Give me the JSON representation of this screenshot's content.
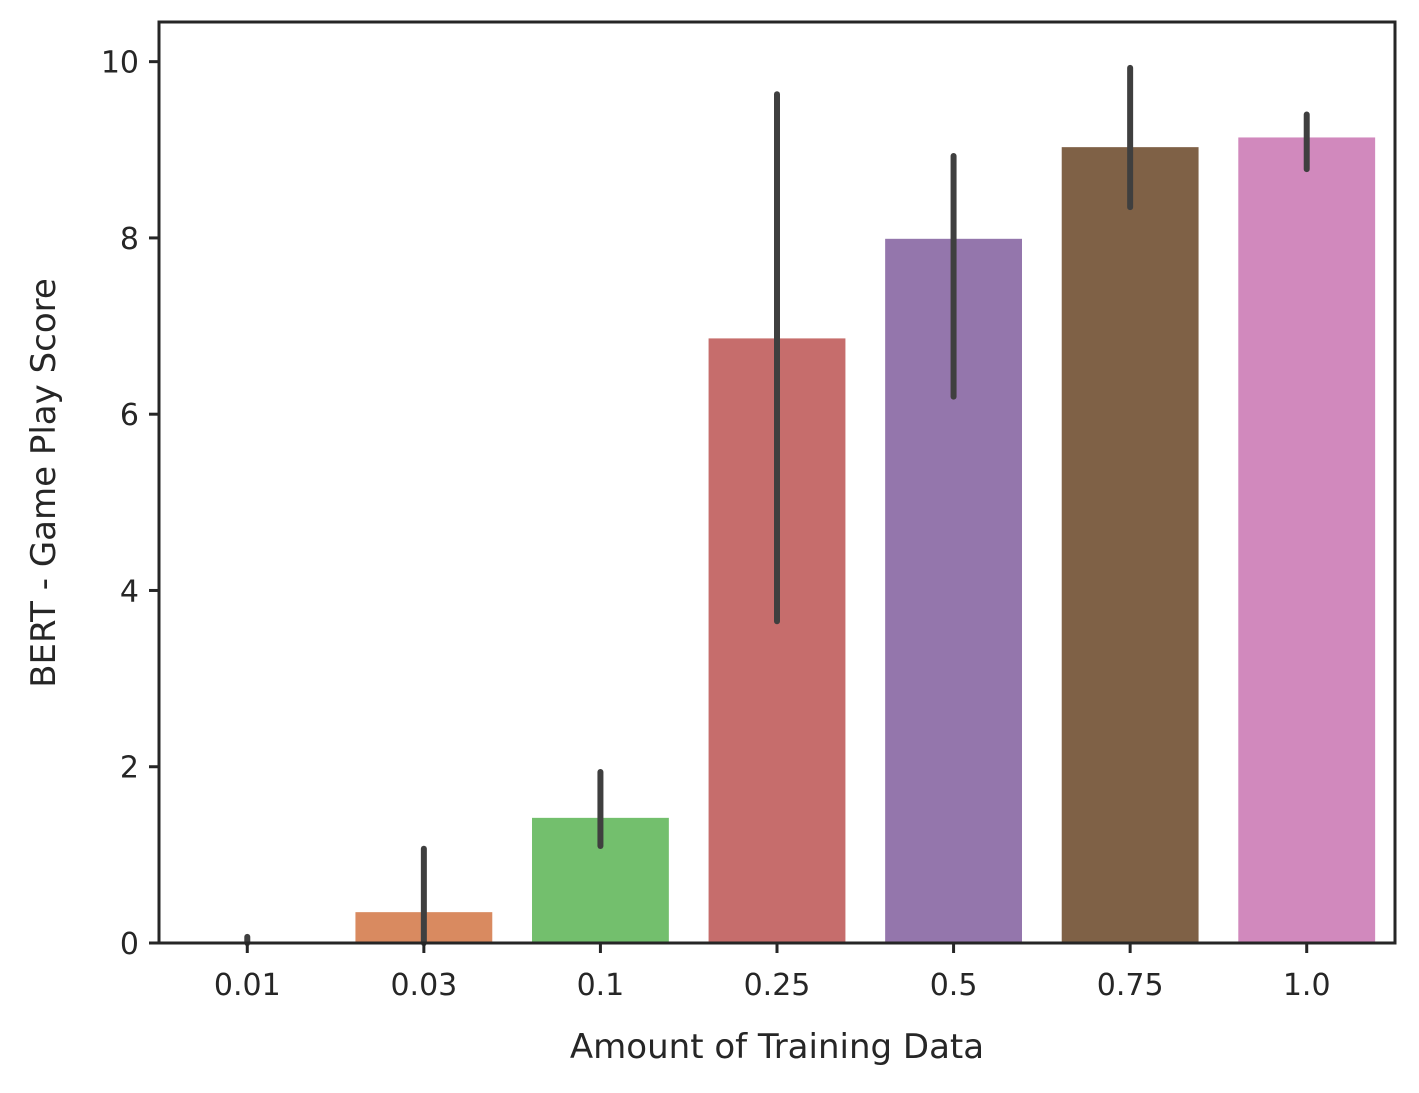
{
  "chart_data": {
    "type": "bar",
    "title": "",
    "xlabel": "Amount of Training Data",
    "ylabel": "BERT - Game Play Score",
    "ylim": [
      0,
      10.45
    ],
    "yticks": [
      0,
      2,
      4,
      6,
      8,
      10
    ],
    "ytick_labels": [
      "0",
      "2",
      "4",
      "6",
      "8",
      "10"
    ],
    "categories": [
      "0.01",
      "0.03",
      "0.1",
      "0.25",
      "0.5",
      "0.75",
      "1.0"
    ],
    "values": [
      0.0,
      0.35,
      1.42,
      6.86,
      7.99,
      9.03,
      9.14
    ],
    "error_low": [
      0.0,
      0.0,
      1.1,
      3.65,
      6.2,
      8.35,
      8.78
    ],
    "error_high": [
      0.07,
      1.07,
      1.94,
      9.63,
      8.93,
      9.93,
      9.4
    ],
    "colors": [
      "#5876b8",
      "#d98a60",
      "#73bf6d",
      "#c66d6c",
      "#9476ac",
      "#7f6146",
      "#d189bd"
    ],
    "error_color": "#3f3f3f",
    "grid": false,
    "legend": "none"
  }
}
